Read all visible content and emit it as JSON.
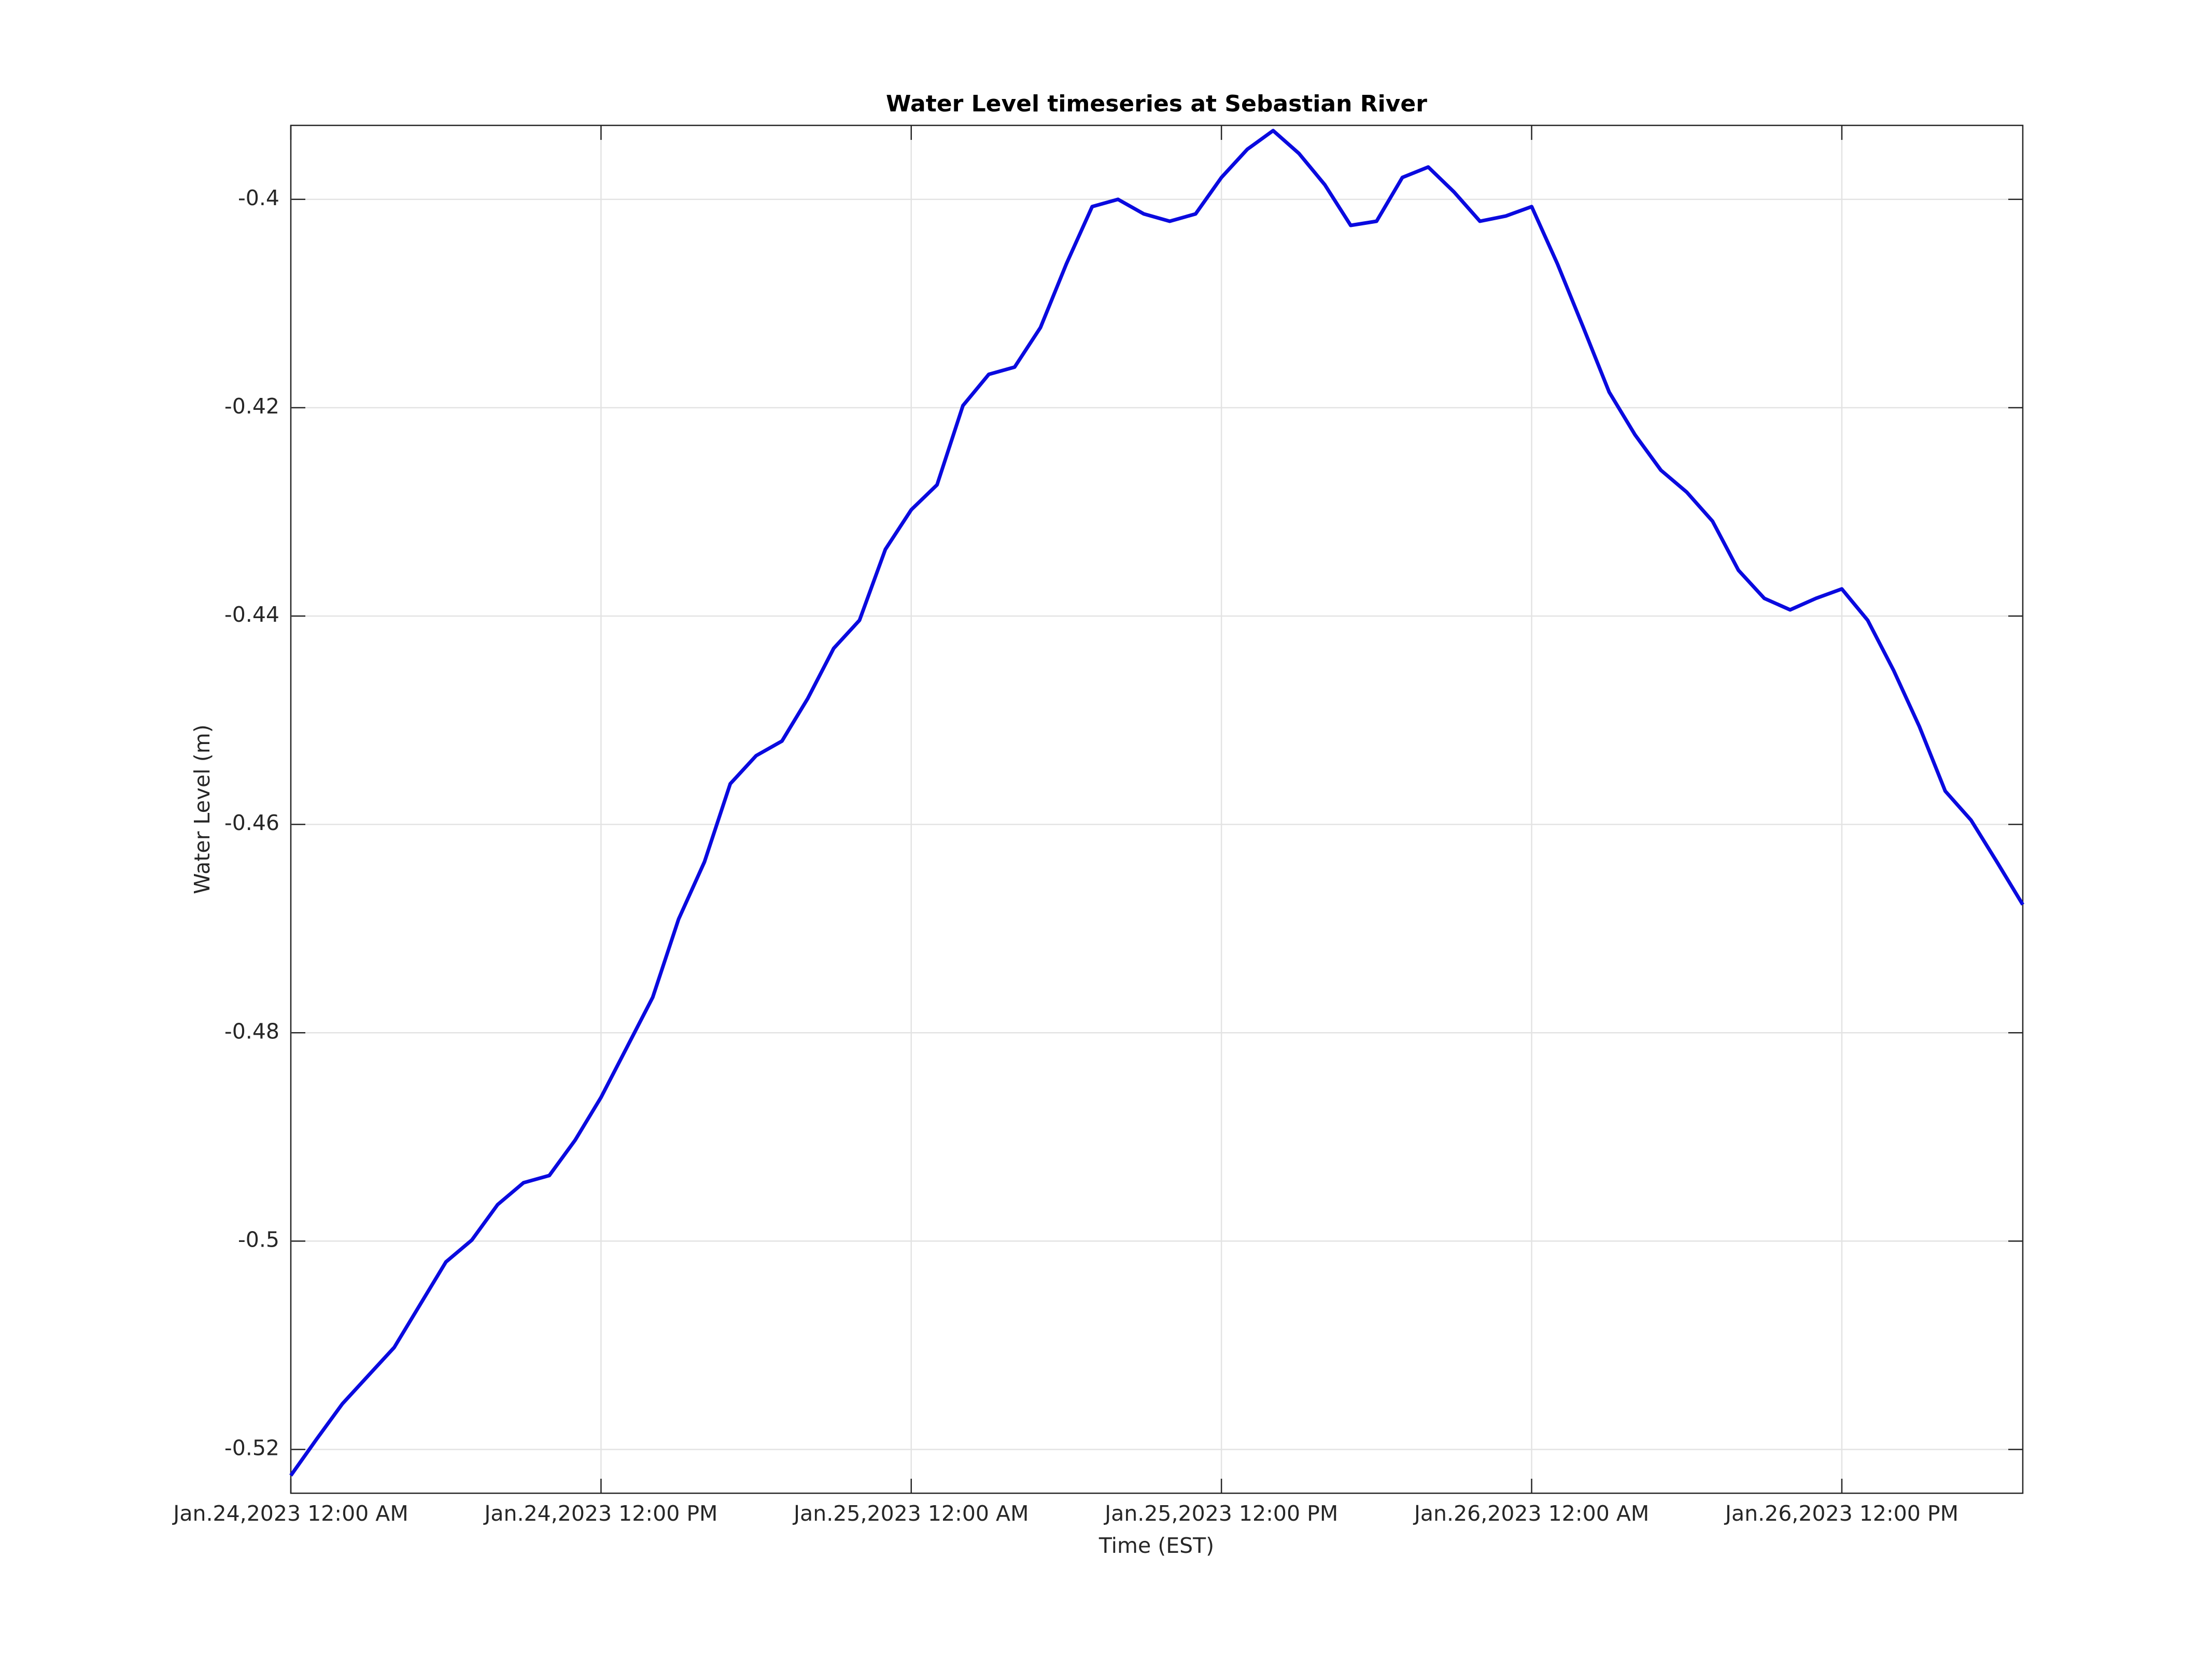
{
  "chart_data": {
    "type": "line",
    "title": "Water Level timeseries at Sebastian River",
    "x_label": "Time (EST)",
    "y_label": "Water Level (m)",
    "x": [
      "2023-01-24T00:00",
      "2023-01-24T01:00",
      "2023-01-24T02:00",
      "2023-01-24T03:00",
      "2023-01-24T04:00",
      "2023-01-24T05:00",
      "2023-01-24T06:00",
      "2023-01-24T07:00",
      "2023-01-24T08:00",
      "2023-01-24T09:00",
      "2023-01-24T10:00",
      "2023-01-24T11:00",
      "2023-01-24T12:00",
      "2023-01-24T13:00",
      "2023-01-24T14:00",
      "2023-01-24T15:00",
      "2023-01-24T16:00",
      "2023-01-24T17:00",
      "2023-01-24T18:00",
      "2023-01-24T19:00",
      "2023-01-24T20:00",
      "2023-01-24T21:00",
      "2023-01-24T22:00",
      "2023-01-24T23:00",
      "2023-01-25T00:00",
      "2023-01-25T01:00",
      "2023-01-25T02:00",
      "2023-01-25T03:00",
      "2023-01-25T04:00",
      "2023-01-25T05:00",
      "2023-01-25T06:00",
      "2023-01-25T07:00",
      "2023-01-25T08:00",
      "2023-01-25T09:00",
      "2023-01-25T10:00",
      "2023-01-25T11:00",
      "2023-01-25T12:00",
      "2023-01-25T13:00",
      "2023-01-25T14:00",
      "2023-01-25T15:00",
      "2023-01-25T16:00",
      "2023-01-25T17:00",
      "2023-01-25T18:00",
      "2023-01-25T19:00",
      "2023-01-25T20:00",
      "2023-01-25T21:00",
      "2023-01-25T22:00",
      "2023-01-25T23:00",
      "2023-01-26T00:00",
      "2023-01-26T01:00",
      "2023-01-26T02:00",
      "2023-01-26T03:00",
      "2023-01-26T04:00",
      "2023-01-26T05:00",
      "2023-01-26T06:00",
      "2023-01-26T07:00",
      "2023-01-26T08:00",
      "2023-01-26T09:00",
      "2023-01-26T10:00",
      "2023-01-26T11:00",
      "2023-01-26T12:00",
      "2023-01-26T13:00",
      "2023-01-26T14:00",
      "2023-01-26T15:00",
      "2023-01-26T16:00",
      "2023-01-26T17:00",
      "2023-01-26T18:00",
      "2023-01-26T19:00"
    ],
    "series": [
      {
        "name": "Water Level",
        "color": "#0a0adf",
        "values": [
          -0.5225,
          -0.519,
          -0.5156,
          -0.5129,
          -0.5102,
          -0.5061,
          -0.502,
          -0.4999,
          -0.4965,
          -0.4944,
          -0.4937,
          -0.4903,
          -0.4862,
          -0.4814,
          -0.4766,
          -0.4691,
          -0.4636,
          -0.4561,
          -0.4534,
          -0.452,
          -0.4479,
          -0.4431,
          -0.4404,
          -0.4336,
          -0.4298,
          -0.4274,
          -0.4198,
          -0.4168,
          -0.4161,
          -0.4123,
          -0.4062,
          -0.4007,
          -0.4,
          -0.4014,
          -0.4021,
          -0.4014,
          -0.3979,
          -0.3952,
          -0.3934,
          -0.3956,
          -0.3986,
          -0.4025,
          -0.4021,
          -0.3979,
          -0.3969,
          -0.3993,
          -0.4021,
          -0.4016,
          -0.4007,
          -0.4062,
          -0.4123,
          -0.4185,
          -0.4226,
          -0.426,
          -0.4281,
          -0.4309,
          -0.4356,
          -0.4383,
          -0.4394,
          -0.4383,
          -0.4374,
          -0.4404,
          -0.4452,
          -0.4506,
          -0.4568,
          -0.4596,
          -0.4636,
          -0.4677
        ]
      }
    ],
    "xlim": [
      "2023-01-24T00:00",
      "2023-01-26T19:00"
    ],
    "xticks": [
      {
        "value": "2023-01-24T00:00",
        "label": "Jan.24,2023 12:00 AM"
      },
      {
        "value": "2023-01-24T12:00",
        "label": "Jan.24,2023 12:00 PM"
      },
      {
        "value": "2023-01-25T00:00",
        "label": "Jan.25,2023 12:00 AM"
      },
      {
        "value": "2023-01-25T12:00",
        "label": "Jan.25,2023 12:00 PM"
      },
      {
        "value": "2023-01-26T00:00",
        "label": "Jan.26,2023 12:00 AM"
      },
      {
        "value": "2023-01-26T12:00",
        "label": "Jan.26,2023 12:00 PM"
      }
    ],
    "ylim": [
      -0.5242,
      -0.3929
    ],
    "yticks": [
      -0.52,
      -0.5,
      -0.48,
      -0.46,
      -0.44,
      -0.42,
      -0.4
    ],
    "grid": true
  }
}
